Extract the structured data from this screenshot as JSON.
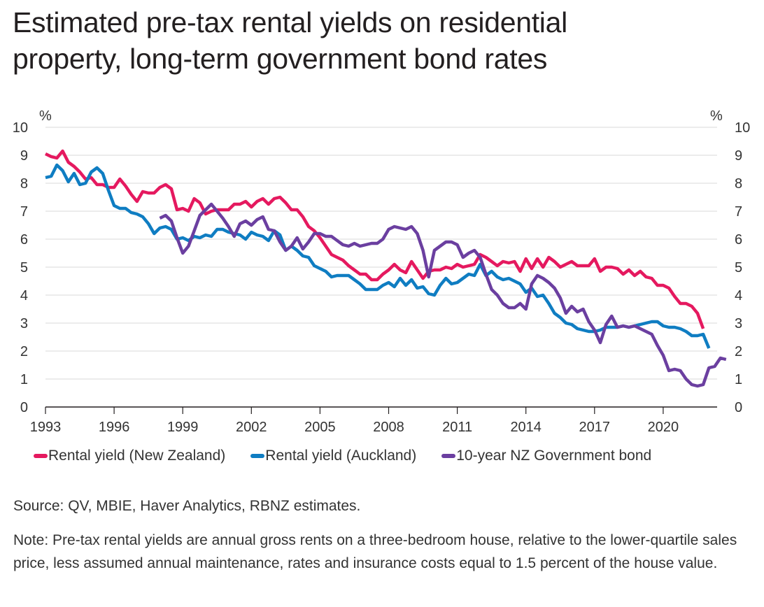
{
  "title_lines": [
    "Estimated pre-tax rental yields on residential",
    "property, long-term government bond rates"
  ],
  "source": "Source: QV, MBIE, Haver Analytics, RBNZ estimates.",
  "note": "Note: Pre-tax rental yields are annual gross rents on a three-bedroom house, relative to the lower-quartile sales price, less assumed annual maintenance, rates and insurance costs equal to 1.5 percent of the house value.",
  "chart_data": {
    "type": "line",
    "title": "Estimated pre-tax rental yields on residential property, long-term government bond rates",
    "xlabel": "",
    "ylabel_left": "%",
    "ylabel_right": "%",
    "xlim": [
      1993,
      2022.4
    ],
    "ylim": [
      0,
      10
    ],
    "x_ticks": [
      "1993",
      "1996",
      "1999",
      "2002",
      "2005",
      "2008",
      "2011",
      "2014",
      "2017",
      "2020"
    ],
    "y_ticks": [
      "0",
      "1",
      "2",
      "3",
      "4",
      "5",
      "6",
      "7",
      "8",
      "9",
      "10"
    ],
    "grid": "horizontal",
    "legend_position": "bottom",
    "series": [
      {
        "name": "Rental yield (New Zealand)",
        "color": "#e5195f",
        "x_start": 1993.0,
        "x_step": 0.25,
        "values": [
          9.05,
          8.95,
          8.9,
          9.15,
          8.75,
          8.6,
          8.4,
          8.15,
          8.2,
          7.95,
          7.95,
          7.85,
          7.85,
          8.15,
          7.9,
          7.6,
          7.35,
          7.7,
          7.65,
          7.65,
          7.85,
          7.95,
          7.8,
          7.05,
          7.1,
          7.0,
          7.45,
          7.3,
          6.9,
          7.0,
          7.05,
          7.05,
          7.05,
          7.25,
          7.25,
          7.35,
          7.15,
          7.35,
          7.45,
          7.25,
          7.45,
          7.5,
          7.3,
          7.05,
          7.05,
          6.8,
          6.45,
          6.3,
          6.05,
          5.75,
          5.45,
          5.35,
          5.25,
          5.05,
          4.9,
          4.75,
          4.75,
          4.55,
          4.55,
          4.75,
          4.9,
          5.1,
          4.9,
          4.8,
          5.2,
          4.9,
          4.6,
          4.85,
          4.9,
          4.9,
          5.0,
          4.95,
          5.1,
          5.0,
          5.05,
          5.1,
          5.45,
          5.35,
          5.2,
          5.05,
          5.2,
          5.15,
          5.2,
          4.85,
          5.3,
          4.95,
          5.3,
          5.0,
          5.35,
          5.2,
          5.0,
          5.1,
          5.2,
          5.05,
          5.05,
          5.05,
          5.3,
          4.85,
          5.0,
          5.0,
          4.95,
          4.75,
          4.9,
          4.7,
          4.85,
          4.65,
          4.6,
          4.35,
          4.35,
          4.25,
          3.95,
          3.7,
          3.7,
          3.6,
          3.35,
          2.8
        ]
      },
      {
        "name": "Rental yield (Auckland)",
        "color": "#0f7dc2",
        "x_start": 1993.0,
        "x_step": 0.25,
        "values": [
          8.2,
          8.25,
          8.65,
          8.45,
          8.05,
          8.35,
          7.95,
          8.0,
          8.4,
          8.55,
          8.35,
          7.75,
          7.2,
          7.1,
          7.1,
          6.95,
          6.9,
          6.8,
          6.55,
          6.2,
          6.4,
          6.45,
          6.35,
          6.0,
          6.05,
          5.95,
          6.1,
          6.05,
          6.15,
          6.1,
          6.35,
          6.35,
          6.25,
          6.2,
          6.15,
          6.0,
          6.25,
          6.15,
          6.1,
          5.95,
          6.3,
          6.15,
          5.6,
          5.75,
          5.6,
          5.4,
          5.35,
          5.05,
          4.95,
          4.85,
          4.65,
          4.7,
          4.7,
          4.7,
          4.55,
          4.4,
          4.2,
          4.2,
          4.2,
          4.35,
          4.45,
          4.3,
          4.6,
          4.35,
          4.55,
          4.25,
          4.3,
          4.05,
          4.0,
          4.35,
          4.6,
          4.4,
          4.45,
          4.6,
          4.75,
          4.7,
          5.1,
          4.7,
          4.85,
          4.65,
          4.55,
          4.6,
          4.5,
          4.4,
          4.1,
          4.25,
          3.95,
          4.0,
          3.7,
          3.35,
          3.2,
          3.0,
          2.95,
          2.8,
          2.75,
          2.7,
          2.7,
          2.75,
          2.85,
          2.85,
          2.85,
          2.9,
          2.85,
          2.9,
          2.95,
          3.0,
          3.05,
          3.05,
          2.9,
          2.85,
          2.85,
          2.8,
          2.7,
          2.55,
          2.55,
          2.6,
          2.1
        ]
      },
      {
        "name": "10-year NZ Government bond",
        "color": "#6b3fa0",
        "x_start": 1998.0,
        "x_step": 0.25,
        "values": [
          6.75,
          6.85,
          6.65,
          6.05,
          5.5,
          5.75,
          6.3,
          6.85,
          7.05,
          7.25,
          7.0,
          6.75,
          6.45,
          6.1,
          6.55,
          6.65,
          6.5,
          6.7,
          6.8,
          6.35,
          6.3,
          5.9,
          5.6,
          5.75,
          6.05,
          5.65,
          5.9,
          6.2,
          6.2,
          6.1,
          6.1,
          5.95,
          5.8,
          5.75,
          5.85,
          5.75,
          5.8,
          5.85,
          5.85,
          6.0,
          6.35,
          6.45,
          6.4,
          6.35,
          6.45,
          6.2,
          5.6,
          4.65,
          5.6,
          5.75,
          5.9,
          5.9,
          5.8,
          5.35,
          5.5,
          5.6,
          5.35,
          4.75,
          4.2,
          4.0,
          3.7,
          3.55,
          3.55,
          3.7,
          3.5,
          4.4,
          4.7,
          4.6,
          4.45,
          4.25,
          3.9,
          3.35,
          3.6,
          3.4,
          3.5,
          3.05,
          2.75,
          2.3,
          2.95,
          3.25,
          2.85,
          2.9,
          2.85,
          2.9,
          2.8,
          2.7,
          2.6,
          2.2,
          1.85,
          1.3,
          1.35,
          1.3,
          1.0,
          0.8,
          0.75,
          0.8,
          1.4,
          1.45,
          1.75,
          1.7
        ]
      }
    ]
  }
}
